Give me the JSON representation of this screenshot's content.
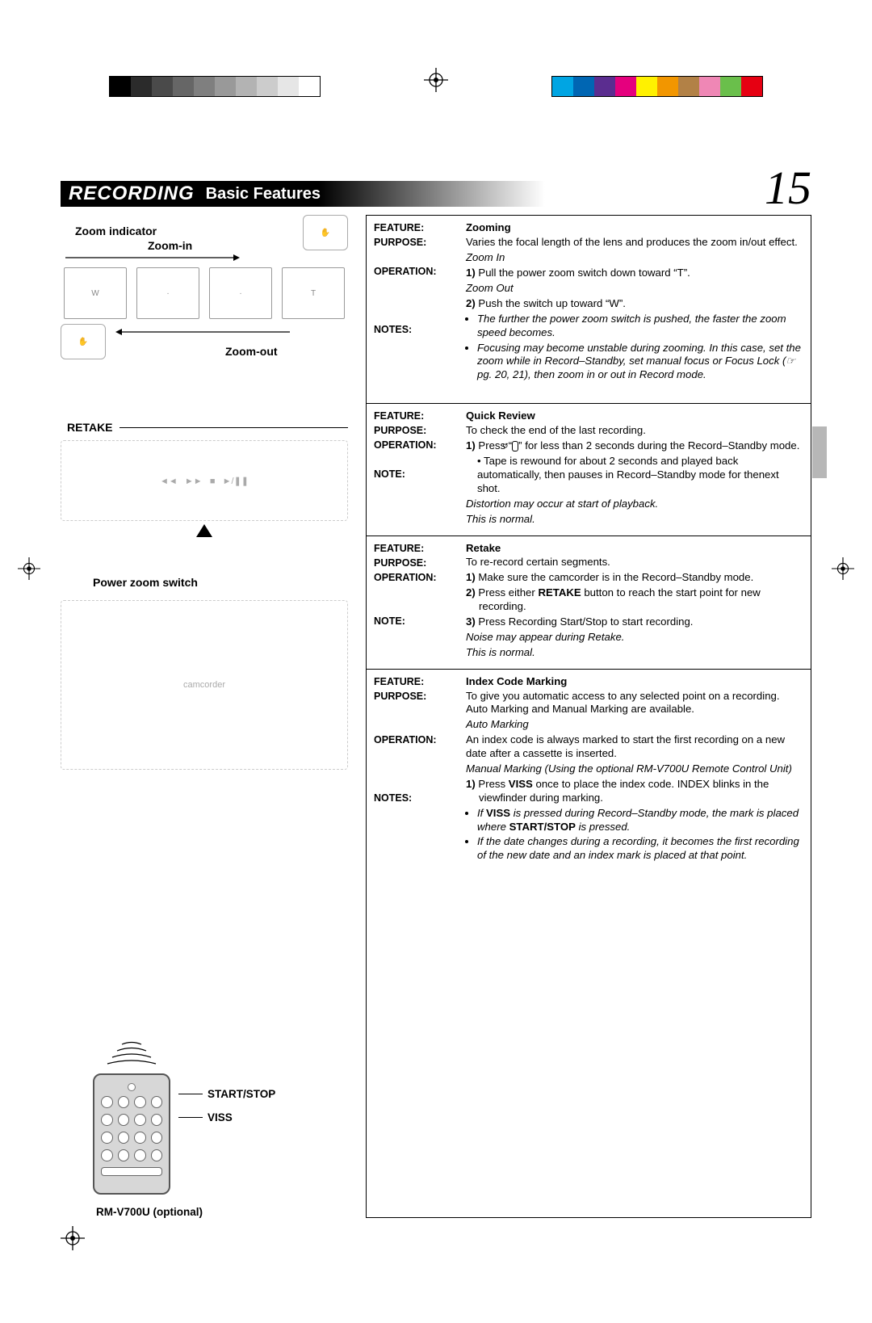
{
  "print_marks": {
    "gray_steps": [
      "#000000",
      "#2b2b2b",
      "#4a4a4a",
      "#666666",
      "#7f7f7f",
      "#999999",
      "#b3b3b3",
      "#cccccc",
      "#e6e6e6",
      "#ffffff"
    ],
    "color_bars": [
      "#00a5e3",
      "#0066b3",
      "#5b2d90",
      "#e5007e",
      "#fff100",
      "#f29600",
      "#b28146",
      "#ef87b5",
      "#6abf4b",
      "#e60012"
    ]
  },
  "header": {
    "section": "RECORDING",
    "subtitle": "Basic Features",
    "page_number": "15"
  },
  "left": {
    "zoom_indicator": "Zoom indicator",
    "zoom_in": "Zoom-in",
    "zoom_out": "Zoom-out",
    "retake": "RETAKE",
    "power_zoom_switch": "Power zoom switch",
    "start_stop": "START/STOP",
    "viss": "VISS",
    "remote_model": "RM-V700U (optional)"
  },
  "features": [
    {
      "rows": [
        {
          "k": "FEATURE:",
          "v_title": "Zooming"
        },
        {
          "k": "PURPOSE:",
          "v": "Varies the focal length of the lens and produces the zoom in/out effect."
        },
        {
          "k": "OPERATION:",
          "ops": [
            {
              "em": "Zoom In"
            },
            {
              "n": "1)",
              "t": "Pull the power zoom switch down toward “T”."
            },
            {
              "em": "Zoom Out"
            },
            {
              "n": "2)",
              "t": "Push the switch up toward “W”."
            }
          ]
        },
        {
          "k": "NOTES:",
          "bullets": [
            {
              "em": "The further the power zoom switch is pushed, the faster the zoom speed becomes."
            },
            {
              "em": "Focusing may become unstable during zooming. In this case, set the zoom while in Record–Standby, set manual focus or Focus Lock (☞ pg. 20, 21), then zoom in or out in Record mode."
            }
          ]
        }
      ]
    },
    {
      "rows": [
        {
          "k": "FEATURE:",
          "v_title": "Quick Review"
        },
        {
          "k": "PURPOSE:",
          "v": "To check the end of the last recording."
        },
        {
          "k": "OPERATION:",
          "ops": [
            {
              "n": "1)",
              "t_pre": "Press “",
              "icon": "↺",
              "t_post": "” for less than 2 seconds during the Record–Standby mode."
            },
            {
              "sub": "• Tape is rewound for about 2 seconds and played back automatically, then pauses in Record–Standby mode for thenext shot."
            }
          ]
        },
        {
          "k": "NOTE:",
          "note_em": "Distortion may occur at start of playback.",
          "note_em2": "This is normal."
        }
      ]
    },
    {
      "rows": [
        {
          "k": "FEATURE:",
          "v_title": "Retake"
        },
        {
          "k": "PURPOSE:",
          "v": "To re-record certain segments."
        },
        {
          "k": "OPERATION:",
          "ops": [
            {
              "n": "1)",
              "t": "Make sure the camcorder is in the Record–Standby mode."
            },
            {
              "n": "2)",
              "t_pre": "Press either ",
              "b": "RETAKE",
              "t_post": " button to reach the start point for new recording."
            },
            {
              "n": "3)",
              "t": "Press Recording Start/Stop to start recording."
            }
          ]
        },
        {
          "k": "NOTE:",
          "note_em": "Noise may appear during Retake.",
          "note_em2": "This is normal."
        }
      ]
    },
    {
      "rows": [
        {
          "k": "FEATURE:",
          "v_title": "Index Code Marking"
        },
        {
          "k": "PURPOSE:",
          "v": "To give you automatic access to any selected point on a recording. Auto Marking and Manual Marking are available."
        },
        {
          "k": "OPERATION:",
          "ops": [
            {
              "em": "Auto Marking"
            },
            {
              "t": "An index code is always marked to start the first recording on a new date after a cassette is inserted."
            },
            {
              "em": "Manual Marking (Using the optional RM-V700U Remote Control Unit)"
            },
            {
              "n": "1)",
              "t_pre": "Press ",
              "b": "VISS",
              "t_post": " once to place the index code. INDEX blinks in the viewfinder during marking."
            }
          ]
        },
        {
          "k": "NOTES:",
          "bullets": [
            {
              "em_pre": "If ",
              "b": "VISS",
              "em_mid": " is pressed during Record–Standby mode, the mark is placed where ",
              "b2": "START/STOP",
              "em_post": " is pressed."
            },
            {
              "em": "If the date changes during a recording, it becomes the first recording of the new date and an index mark is placed at that point."
            }
          ]
        }
      ]
    }
  ]
}
